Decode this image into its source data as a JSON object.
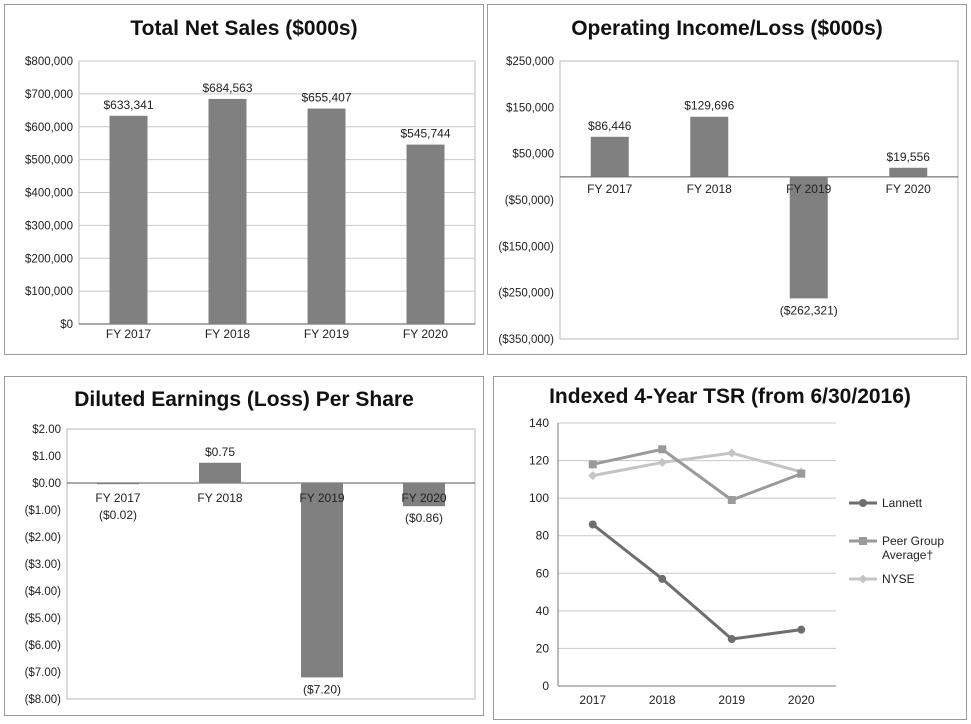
{
  "chart_data": [
    {
      "type": "bar",
      "title": "Total Net Sales ($000s)",
      "categories": [
        "FY 2017",
        "FY 2018",
        "FY 2019",
        "FY 2020"
      ],
      "values": [
        633341,
        684563,
        655407,
        545744
      ],
      "value_labels": [
        "$633,341",
        "$684,563",
        "$655,407",
        "$545,744"
      ],
      "ylim": [
        0,
        800000
      ],
      "y_ticks": [
        0,
        100000,
        200000,
        300000,
        400000,
        500000,
        600000,
        700000,
        800000
      ],
      "y_tick_labels": [
        "$0",
        "$100,000",
        "$200,000",
        "$300,000",
        "$400,000",
        "$500,000",
        "$600,000",
        "$700,000",
        "$800,000"
      ],
      "grid": true,
      "bar_color": "#808080"
    },
    {
      "type": "bar",
      "title": "Operating Income/Loss ($000s)",
      "categories": [
        "FY 2017",
        "FY 2018",
        "FY 2019",
        "FY 2020"
      ],
      "values": [
        86446,
        129696,
        -262321,
        19556
      ],
      "value_labels": [
        "$86,446",
        "$129,696",
        "($262,321)",
        "$19,556"
      ],
      "ylim": [
        -350000,
        250000
      ],
      "y_ticks": [
        250000,
        150000,
        50000,
        -50000,
        -150000,
        -250000,
        -350000
      ],
      "y_tick_labels": [
        "$250,000",
        "$150,000",
        "$50,000",
        "($50,000)",
        "($150,000)",
        "($250,000)",
        "($350,000)"
      ],
      "grid": false,
      "bar_color": "#808080"
    },
    {
      "type": "bar",
      "title": "Diluted Earnings (Loss) Per Share",
      "categories": [
        "FY 2017",
        "FY 2018",
        "FY 2019",
        "FY 2020"
      ],
      "values": [
        -0.02,
        0.75,
        -7.2,
        -0.86
      ],
      "value_labels": [
        "($0.02)",
        "$0.75",
        "($7.20)",
        "($0.86)"
      ],
      "ylim": [
        -8,
        2
      ],
      "y_ticks": [
        2,
        1,
        0,
        -1,
        -2,
        -3,
        -4,
        -5,
        -6,
        -7,
        -8
      ],
      "y_tick_labels": [
        "$2.00",
        "$1.00",
        "$0.00",
        "($1.00)",
        "($2.00)",
        "($3.00)",
        "($4.00)",
        "($5.00)",
        "($6.00)",
        "($7.00)",
        "($8.00)"
      ],
      "grid": false,
      "bar_color": "#808080"
    },
    {
      "type": "line",
      "title": "Indexed 4-Year TSR (from 6/30/2016)",
      "categories": [
        "2017",
        "2018",
        "2019",
        "2020"
      ],
      "ylim": [
        0,
        140
      ],
      "y_ticks": [
        0,
        20,
        40,
        60,
        80,
        100,
        120,
        140
      ],
      "y_tick_labels": [
        "0",
        "20",
        "40",
        "60",
        "80",
        "100",
        "120",
        "140"
      ],
      "legend": "right",
      "series": [
        {
          "name": "Lannett",
          "name_lines": [
            "Lannett"
          ],
          "values": [
            86,
            57,
            25,
            30
          ],
          "color": "#6e6e6e",
          "marker": "circle"
        },
        {
          "name": "Peer Group Average†",
          "name_lines": [
            "Peer Group",
            "Average†"
          ],
          "values": [
            118,
            126,
            99,
            113
          ],
          "color": "#9a9a9a",
          "marker": "square"
        },
        {
          "name": "NYSE",
          "name_lines": [
            "NYSE"
          ],
          "values": [
            112,
            119,
            124,
            114
          ],
          "color": "#c4c4c4",
          "marker": "diamond"
        }
      ]
    }
  ]
}
